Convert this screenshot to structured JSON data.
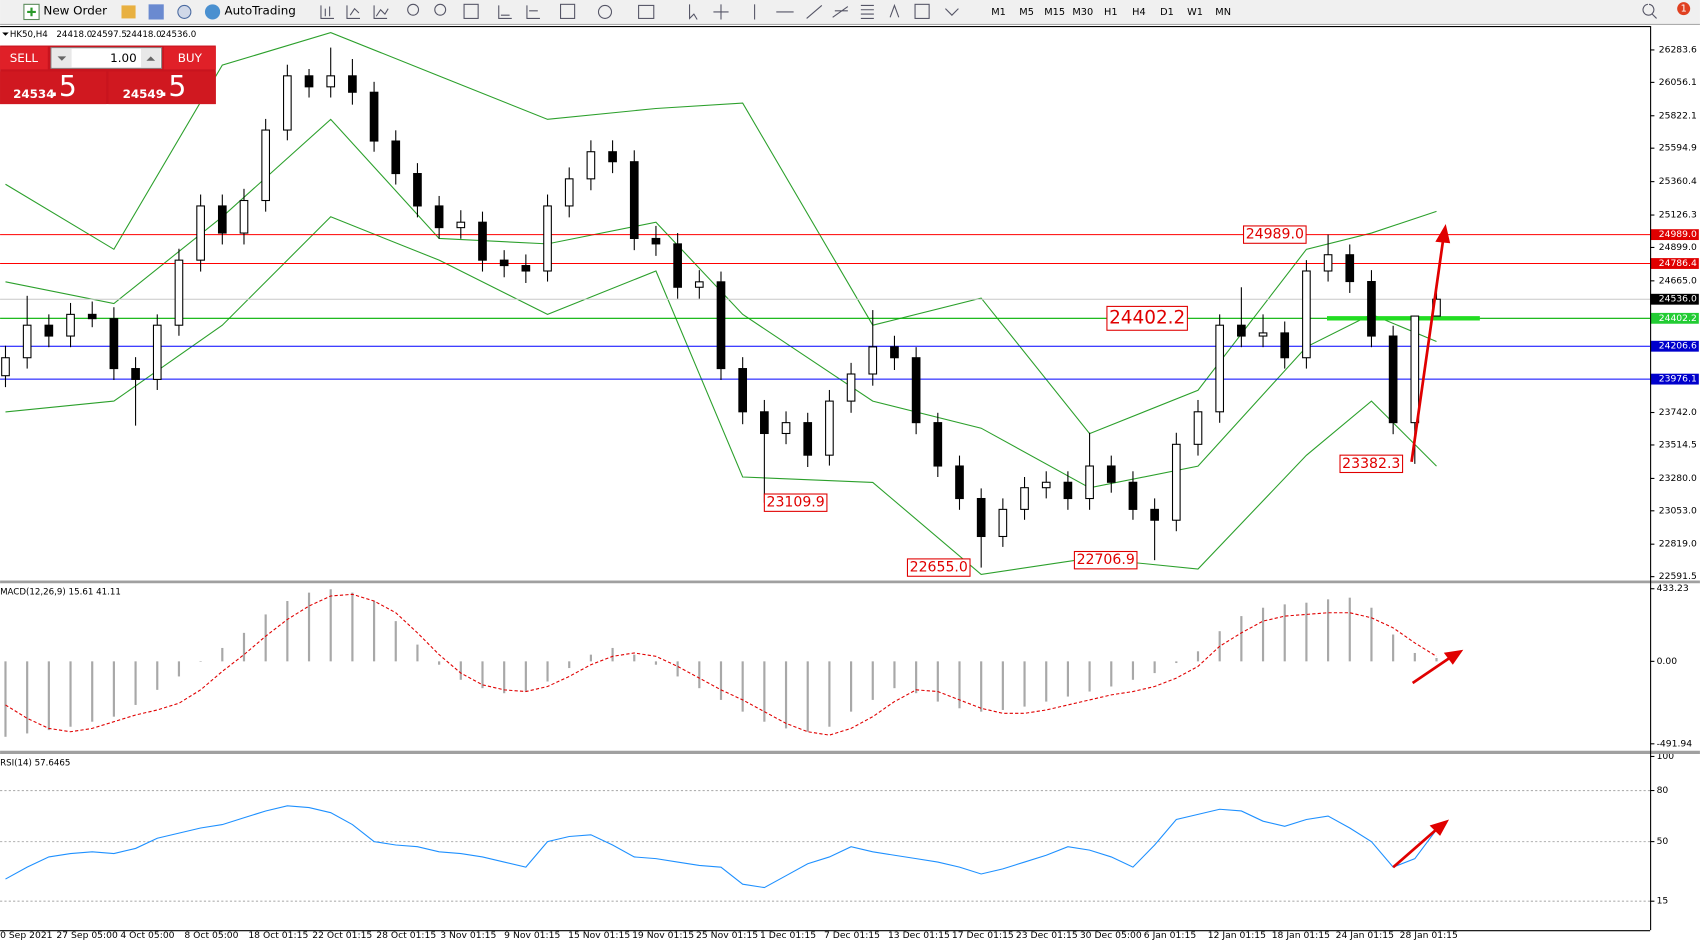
{
  "toolbar": {
    "new_order": "New Order",
    "auto_trading": "AutoTrading",
    "timeframes": [
      "M1",
      "M5",
      "M15",
      "M30",
      "H1",
      "H4",
      "D1",
      "W1",
      "MN"
    ],
    "notifications": "1"
  },
  "trade_panel": {
    "sell": "SELL",
    "buy": "BUY",
    "volume": "1.00",
    "bid_prefix": "24534",
    "bid_big": ".5",
    "ask_prefix": "24549",
    "ask_big": ".5"
  },
  "time_axis": {
    "labels": [
      "0 Sep 2021",
      "27 Sep 05:00",
      "4 Oct 05:00",
      "8 Oct 05:00",
      "18 Oct 01:15",
      "22 Oct 01:15",
      "28 Oct 01:15",
      "3 Nov 01:15",
      "9 Nov 01:15",
      "15 Nov 01:15",
      "19 Nov 01:15",
      "25 Nov 01:15",
      "1 Dec 01:15",
      "7 Dec 01:15",
      "13 Dec 01:15",
      "17 Dec 01:15",
      "23 Dec 01:15",
      "30 Dec 05:00",
      "6 Jan 01:15",
      "12 Jan 01:15",
      "18 Jan 01:15",
      "24 Jan 01:15",
      "28 Jan 01:15"
    ]
  },
  "chart_data": [
    {
      "type": "candlestick",
      "title": "HK50,H4",
      "header_values": [
        "24418.0",
        "24597.5",
        "24418.0",
        "24536.0"
      ],
      "up_color": "#ffffff",
      "down_color": "#000000",
      "candles": [
        [
          24000,
          24210,
          23920,
          24126
        ],
        [
          24126,
          24560,
          24050,
          24354
        ],
        [
          24354,
          24430,
          24200,
          24278
        ],
        [
          24278,
          24510,
          24200,
          24430
        ],
        [
          24430,
          24520,
          24340,
          24400
        ],
        [
          24400,
          24480,
          23970,
          24050
        ],
        [
          24050,
          24130,
          23650,
          23974
        ],
        [
          23974,
          24430,
          23900,
          24354
        ],
        [
          24354,
          24890,
          24280,
          24810
        ],
        [
          24810,
          25270,
          24730,
          25190
        ],
        [
          25190,
          25270,
          24920,
          25000
        ],
        [
          25000,
          25310,
          24920,
          25228
        ],
        [
          25228,
          25800,
          25150,
          25722
        ],
        [
          25722,
          26180,
          25650,
          26102
        ],
        [
          26102,
          26150,
          25950,
          26025
        ],
        [
          26025,
          26300,
          25950,
          26102
        ],
        [
          26102,
          26220,
          25900,
          25987
        ],
        [
          25987,
          26060,
          25570,
          25645
        ],
        [
          25645,
          25720,
          25340,
          25417
        ],
        [
          25417,
          25490,
          25110,
          25190
        ],
        [
          25190,
          25260,
          24960,
          25038
        ],
        [
          25038,
          25160,
          24960,
          25076
        ],
        [
          25076,
          25150,
          24730,
          24810
        ],
        [
          24810,
          24880,
          24690,
          24772
        ],
        [
          24772,
          24850,
          24650,
          24734
        ],
        [
          24734,
          25270,
          24660,
          25190
        ],
        [
          25190,
          25460,
          25110,
          25380
        ],
        [
          25380,
          25650,
          25300,
          25570
        ],
        [
          25570,
          25650,
          25420,
          25500
        ],
        [
          25500,
          25580,
          24880,
          24962
        ],
        [
          24962,
          25050,
          24840,
          24924
        ],
        [
          24924,
          25000,
          24540,
          24620
        ],
        [
          24620,
          24740,
          24540,
          24658
        ],
        [
          24658,
          24730,
          23970,
          24050
        ],
        [
          24050,
          24130,
          23660,
          23747
        ],
        [
          23747,
          23830,
          23109.9,
          23595
        ],
        [
          23595,
          23750,
          23520,
          23671
        ],
        [
          23671,
          23740,
          23360,
          23443
        ],
        [
          23443,
          23900,
          23370,
          23822
        ],
        [
          23822,
          24090,
          23740,
          24012
        ],
        [
          24012,
          24460,
          23930,
          24202
        ],
        [
          24202,
          24280,
          24040,
          24126
        ],
        [
          24126,
          24200,
          23590,
          23671
        ],
        [
          23671,
          23740,
          23290,
          23367
        ],
        [
          23367,
          23440,
          23060,
          23139
        ],
        [
          23139,
          23210,
          22655.0,
          22873
        ],
        [
          22873,
          23140,
          22800,
          23063
        ],
        [
          23063,
          23290,
          22990,
          23215
        ],
        [
          23215,
          23330,
          23140,
          23253
        ],
        [
          23253,
          23330,
          23060,
          23139
        ],
        [
          23139,
          23600,
          23060,
          23367
        ],
        [
          23367,
          23440,
          23180,
          23253
        ],
        [
          23253,
          23330,
          22990,
          23063
        ],
        [
          23063,
          23140,
          22706.9,
          22987
        ],
        [
          22987,
          23600,
          22910,
          23519
        ],
        [
          23519,
          23830,
          23440,
          23747
        ],
        [
          23747,
          24430,
          23670,
          24354
        ],
        [
          24354,
          24620,
          24200,
          24278
        ],
        [
          24278,
          24430,
          24200,
          24300
        ],
        [
          24300,
          24380,
          24050,
          24126
        ],
        [
          24126,
          24810,
          24050,
          24734
        ],
        [
          24734,
          24989.0,
          24660,
          24848
        ],
        [
          24848,
          24920,
          24580,
          24660
        ],
        [
          24660,
          24740,
          24200,
          24278
        ],
        [
          24278,
          24350,
          23590,
          23671
        ],
        [
          23671,
          24420,
          23382.3,
          24418
        ],
        [
          24418.0,
          24597.5,
          24418.0,
          24536.0
        ]
      ],
      "bands": {
        "color": "#2ca02c",
        "x": [
          0,
          5,
          10,
          15,
          20,
          25,
          30,
          34,
          40,
          45,
          50,
          55,
          60,
          63,
          66
        ],
        "upper": [
          25342,
          24886,
          26177,
          26405,
          26101,
          25797,
          25873,
          25911,
          24354,
          24544,
          23594,
          23898,
          24886,
          25000,
          25152
        ],
        "middle": [
          24658,
          24506,
          25114,
          25797,
          24962,
          24924,
          25076,
          24430,
          23822,
          23632,
          23214,
          23366,
          24202,
          24430,
          24240
        ],
        "lower": [
          23746,
          23822,
          24354,
          25114,
          24810,
          24430,
          24734,
          23290,
          23252,
          22607,
          22721,
          22645,
          23442,
          23822,
          23366
        ]
      },
      "ylim": [
        22568,
        26436
      ],
      "yticks": [
        26283.6,
        26056.1,
        25822.1,
        25594.9,
        25360.4,
        25126.3,
        {
          "value": 24899.0,
          "label": "24899.0"
        },
        {
          "value": 24665.0,
          "label": "24665.0"
        },
        {
          "value": 23742.0,
          "label": "23742.0"
        },
        23514.5,
        {
          "value": 23280.0,
          "label": "23280.0"
        },
        {
          "value": 23053.0,
          "label": "23053.0"
        },
        {
          "value": 22819.0,
          "label": "22819.0"
        },
        22591.5
      ],
      "levels": [
        {
          "value": 24989.0,
          "label": "24989.0",
          "color": "#e00000",
          "line_color": "#ff0000"
        },
        {
          "value": 24786.4,
          "label": "24786.4",
          "color": "#e00000",
          "line_color": "#ff0000"
        },
        {
          "value": 24536.0,
          "label": "24536.0",
          "color": "#000000",
          "line_color": "#c8c8c8"
        },
        {
          "value": 24402.2,
          "label": "24402.2",
          "color": "#22cc33",
          "line_color": "#00b000"
        },
        {
          "value": 24206.6,
          "label": "24206.6",
          "color": "#0000cc",
          "line_color": "#0000ff"
        },
        {
          "value": 23976.1,
          "label": "23976.1",
          "color": "#0000cc",
          "line_color": "#0000ff"
        }
      ],
      "annotations": [
        {
          "value": 24989.0,
          "label": "24989.0"
        },
        {
          "value": 24402.2,
          "label": "24402.2"
        },
        {
          "value": 23109.9,
          "label": "23109.9"
        },
        {
          "value": 22655.0,
          "label": "22655.0"
        },
        {
          "value": 22706.9,
          "label": "22706.9"
        },
        {
          "value": 23382.3,
          "label": "23382.3"
        }
      ]
    },
    {
      "type": "bar",
      "title": "MACD(12,26,9) 15.61 41.11",
      "series": [
        {
          "type": "bar",
          "color": "#a8a8a8",
          "values": [
            -450,
            -430,
            -410,
            -390,
            -360,
            -330,
            -260,
            -170,
            -90,
            0,
            80,
            170,
            280,
            360,
            410,
            430,
            410,
            360,
            240,
            100,
            -20,
            -110,
            -160,
            -190,
            -180,
            -120,
            -40,
            40,
            80,
            40,
            -20,
            -90,
            -160,
            -230,
            -300,
            -360,
            -400,
            -420,
            -390,
            -300,
            -230,
            -160,
            -190,
            -240,
            -280,
            -300,
            -290,
            -270,
            -240,
            -210,
            -180,
            -150,
            -110,
            -70,
            -10,
            60,
            180,
            270,
            320,
            340,
            350,
            370,
            380,
            320,
            160,
            50,
            20
          ]
        },
        {
          "type": "line",
          "color": "#e00000",
          "values": [
            -260,
            -340,
            -400,
            -420,
            -400,
            -360,
            -320,
            -290,
            -250,
            -170,
            -60,
            40,
            150,
            250,
            330,
            390,
            400,
            360,
            290,
            170,
            40,
            -70,
            -140,
            -170,
            -180,
            -150,
            -90,
            -20,
            30,
            50,
            30,
            -30,
            -100,
            -170,
            -230,
            -300,
            -370,
            -420,
            -440,
            -400,
            -330,
            -240,
            -170,
            -180,
            -230,
            -280,
            -310,
            -310,
            -290,
            -260,
            -230,
            -200,
            -180,
            -150,
            -100,
            -30,
            90,
            170,
            240,
            270,
            280,
            290,
            290,
            260,
            200,
            110,
            30
          ]
        }
      ],
      "ylim": [
        -530,
        466
      ],
      "yticks": [
        433.23,
        {
          "value": 0,
          "label": "0.00"
        },
        -491.94
      ]
    },
    {
      "type": "line",
      "title": "RSI(14) 57.6465",
      "color": "#1e90ff",
      "values": [
        28,
        35,
        41,
        43,
        44,
        43,
        46,
        52,
        55,
        58,
        60,
        64,
        68,
        71,
        70,
        67,
        60,
        50,
        48,
        47,
        44,
        43,
        41,
        38,
        35,
        50,
        53,
        54,
        48,
        41,
        40,
        38,
        36,
        35,
        25,
        23,
        30,
        37,
        41,
        47,
        44,
        42,
        40,
        38,
        35,
        31,
        34,
        38,
        42,
        47,
        45,
        41,
        35,
        48,
        63,
        66,
        69,
        68,
        62,
        59,
        63,
        65,
        58,
        50,
        35,
        40,
        57
      ],
      "ylim": [
        -2,
        100.5
      ],
      "yticks": [
        100,
        80,
        50,
        15
      ],
      "grid": true
    }
  ]
}
